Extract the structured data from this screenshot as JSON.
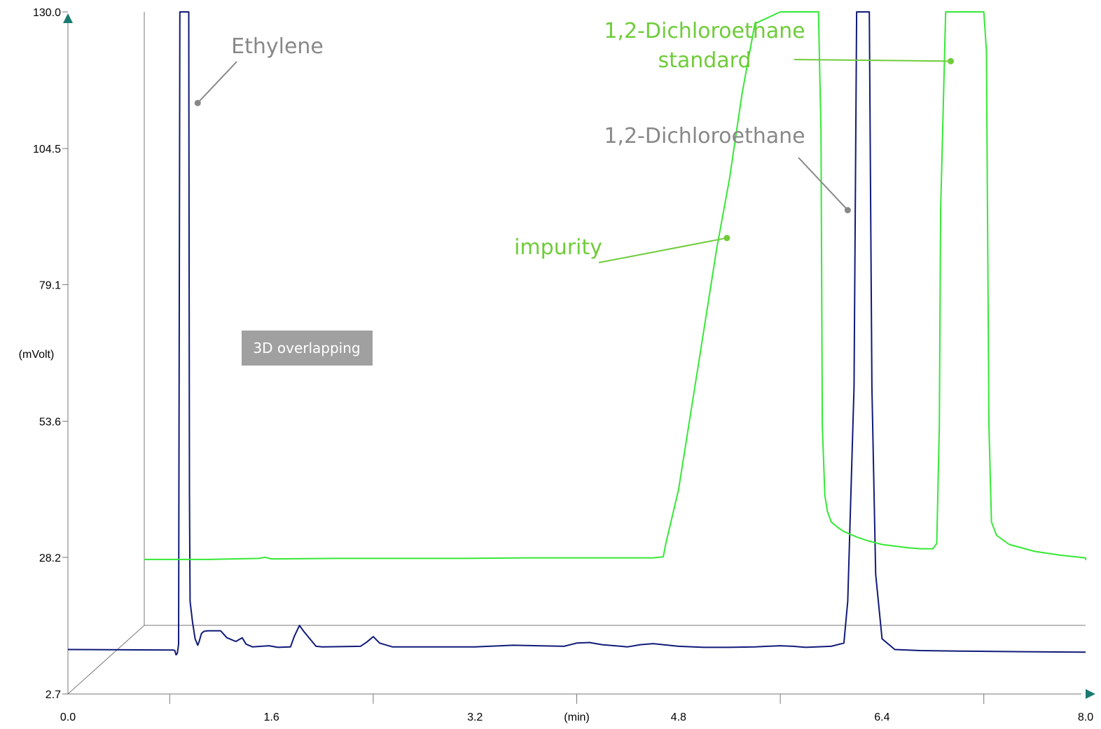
{
  "colors": {
    "sample": "#101a78",
    "standard": "#35e835",
    "annotation_gray": "#888888",
    "annotation_green": "#6fcc3a",
    "axis_arrow": "#1a7a72",
    "badge_bg": "#a0a0a0"
  },
  "badge": {
    "text": "3D overlapping"
  },
  "chart_data": {
    "type": "line",
    "xlabel": "(min)",
    "ylabel": "(mVolt)",
    "xlim": [
      0.0,
      8.0
    ],
    "ylim": [
      2.7,
      130.0
    ],
    "xticks": [
      "0.0",
      "1.6",
      "3.2",
      "4.8",
      "6.4",
      "8.0"
    ],
    "yticks": [
      "2.7",
      "28.2",
      "53.6",
      "79.1",
      "104.5",
      "130.0"
    ],
    "grid": false,
    "legend": "none",
    "annotations": [
      {
        "lines": [
          "Ethylene"
        ],
        "color": "gray",
        "point": [
          1.02,
          113.0
        ]
      },
      {
        "lines": [
          "1,2-Dichloroethane",
          "standard"
        ],
        "color": "green",
        "point": [
          6.34,
          108.0
        ]
      },
      {
        "lines": [
          "1,2-Dichloroethane"
        ],
        "color": "gray",
        "point": [
          6.13,
          93.0
        ]
      },
      {
        "lines": [
          "impurity"
        ],
        "color": "green",
        "point": [
          4.58,
          75.0
        ]
      }
    ],
    "series": [
      {
        "x": [
          0.0,
          0.83,
          0.84,
          0.85,
          0.86,
          0.87,
          0.88,
          0.885,
          0.895,
          0.95,
          0.955,
          0.96,
          0.98,
          1.0,
          1.02,
          1.03,
          1.05,
          1.07,
          1.1,
          1.2,
          1.25,
          1.32,
          1.37,
          1.4,
          1.45,
          1.52,
          1.58,
          1.65,
          1.75,
          1.78,
          1.82,
          1.85,
          1.95,
          2.0,
          2.3,
          2.35,
          2.4,
          2.45,
          2.55,
          2.8,
          3.2,
          3.5,
          3.9,
          4.0,
          4.1,
          4.2,
          4.4,
          4.5,
          4.6,
          4.8,
          5.0,
          5.2,
          5.4,
          5.5,
          5.6,
          5.7,
          5.8,
          6.0,
          6.1,
          6.13,
          6.18,
          6.2,
          6.25,
          6.3,
          6.32,
          6.35,
          6.4,
          6.5,
          6.7,
          7.0,
          7.5,
          8.0
        ],
        "y": [
          11.0,
          10.9,
          10.8,
          10.0,
          10.3,
          12.0,
          130.0,
          130.0,
          130.0,
          130.0,
          40.0,
          20.0,
          16.0,
          13.0,
          11.8,
          12.4,
          14.0,
          14.4,
          14.5,
          14.5,
          13.2,
          12.5,
          13.2,
          12.0,
          11.5,
          11.6,
          11.7,
          11.4,
          11.5,
          13.5,
          15.5,
          14.5,
          11.6,
          11.5,
          11.6,
          12.4,
          13.4,
          12.2,
          11.5,
          11.5,
          11.5,
          11.8,
          11.6,
          12.2,
          12.3,
          11.9,
          11.5,
          11.9,
          12.1,
          11.6,
          11.4,
          11.4,
          11.5,
          11.6,
          11.7,
          11.6,
          11.4,
          11.6,
          12.2,
          20.0,
          60.0,
          130.0,
          130.0,
          130.0,
          60.0,
          25.0,
          13.0,
          11.0,
          10.8,
          10.7,
          10.6,
          10.5
        ]
      },
      {
        "x": [
          0.0,
          0.5,
          0.9,
          0.95,
          1.0,
          1.5,
          2.0,
          2.5,
          3.0,
          3.5,
          4.0,
          4.08,
          4.1,
          4.2,
          4.3,
          4.4,
          4.5,
          4.6,
          4.7,
          4.8,
          5.0,
          5.05,
          5.08,
          5.25,
          5.3,
          5.32,
          5.33,
          5.35,
          5.37,
          5.4,
          5.45,
          5.5,
          5.6,
          5.7,
          5.8,
          6.0,
          6.1,
          6.2,
          6.23,
          6.25,
          6.26,
          6.3,
          6.55,
          6.6,
          6.62,
          6.64,
          6.66,
          6.7,
          6.8,
          7.0,
          7.2,
          7.5,
          7.7,
          7.9,
          8.0
        ],
        "y": [
          15.0,
          15.0,
          15.2,
          15.4,
          15.1,
          15.2,
          15.2,
          15.2,
          15.3,
          15.3,
          15.3,
          15.5,
          18.0,
          28.0,
          43.0,
          58.0,
          73.0,
          86.0,
          102.0,
          115.0,
          124.0,
          128.0,
          130.0,
          130.0,
          130.0,
          95.0,
          40.0,
          27.0,
          24.0,
          22.0,
          21.0,
          20.2,
          19.2,
          18.4,
          17.8,
          17.2,
          17.0,
          17.0,
          18.0,
          40.0,
          80.0,
          130.0,
          130.0,
          130.0,
          110.0,
          40.0,
          22.0,
          19.5,
          17.8,
          16.5,
          15.8,
          15.3,
          15.1,
          15.0,
          14.9
        ]
      }
    ]
  }
}
